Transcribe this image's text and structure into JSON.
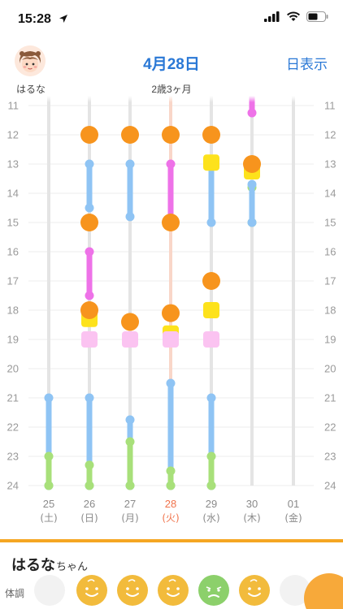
{
  "status_bar": {
    "time": "15:28"
  },
  "header": {
    "date": "4月28日",
    "view_button": "日表示"
  },
  "child": {
    "name": "はるな",
    "age": "2歳3ヶ月",
    "honorific": "ちゃん"
  },
  "panel": {
    "condition_label": "体調"
  },
  "colors": {
    "orange": "#f7941d",
    "blue": "#8fc4f4",
    "pink": "#ee72e8",
    "green": "#a8e07a",
    "yellow": "#fde21c",
    "lightpink": "#fbc3f1",
    "today": "#f0734b",
    "accent": "#2a78d6"
  },
  "chart_data": {
    "type": "timeline",
    "y_ticks": [
      "11",
      "12",
      "13",
      "14",
      "15",
      "16",
      "17",
      "18",
      "19",
      "20",
      "21",
      "22",
      "23",
      "24"
    ],
    "days": [
      {
        "date": "25",
        "weekday": "(土)",
        "today": false
      },
      {
        "date": "26",
        "weekday": "(日)",
        "today": false
      },
      {
        "date": "27",
        "weekday": "(月)",
        "today": false
      },
      {
        "date": "28",
        "weekday": "(火)",
        "today": true
      },
      {
        "date": "29",
        "weekday": "(水)",
        "today": false
      },
      {
        "date": "30",
        "weekday": "(木)",
        "today": false
      },
      {
        "date": "01",
        "weekday": "(金)",
        "today": false
      }
    ],
    "segments": [
      {
        "day": 0,
        "start": 21.0,
        "end": 24.0,
        "color": "blue"
      },
      {
        "day": 0,
        "start": 23.0,
        "end": 24.0,
        "color": "green"
      },
      {
        "day": 1,
        "start": 13.0,
        "end": 14.5,
        "color": "blue"
      },
      {
        "day": 1,
        "start": 16.0,
        "end": 17.5,
        "color": "pink"
      },
      {
        "day": 1,
        "start": 21.0,
        "end": 24.0,
        "color": "blue"
      },
      {
        "day": 1,
        "start": 23.3,
        "end": 24.0,
        "color": "green"
      },
      {
        "day": 2,
        "start": 13.0,
        "end": 14.8,
        "color": "blue"
      },
      {
        "day": 2,
        "start": 21.75,
        "end": 24.0,
        "color": "blue"
      },
      {
        "day": 2,
        "start": 22.5,
        "end": 24.0,
        "color": "green"
      },
      {
        "day": 3,
        "start": 13.0,
        "end": 15.0,
        "color": "pink"
      },
      {
        "day": 3,
        "start": 20.5,
        "end": 24.0,
        "color": "blue"
      },
      {
        "day": 3,
        "start": 23.5,
        "end": 24.0,
        "color": "green"
      },
      {
        "day": 4,
        "start": 13.0,
        "end": 15.0,
        "color": "blue"
      },
      {
        "day": 4,
        "start": 21.0,
        "end": 24.0,
        "color": "blue"
      },
      {
        "day": 4,
        "start": 23.0,
        "end": 24.0,
        "color": "green"
      },
      {
        "day": 5,
        "start": 10.5,
        "end": 11.25,
        "color": "pink"
      },
      {
        "day": 5,
        "start": 13.8,
        "end": 15.0,
        "color": "green"
      },
      {
        "day": 5,
        "start": 13.7,
        "end": 15.0,
        "color": "blue"
      }
    ],
    "meals": [
      {
        "day": 1,
        "time": 12.0
      },
      {
        "day": 1,
        "time": 15.0
      },
      {
        "day": 1,
        "time": 18.0
      },
      {
        "day": 2,
        "time": 12.0
      },
      {
        "day": 2,
        "time": 18.4
      },
      {
        "day": 3,
        "time": 12.0
      },
      {
        "day": 3,
        "time": 15.0
      },
      {
        "day": 3,
        "time": 18.1
      },
      {
        "day": 4,
        "time": 12.0
      },
      {
        "day": 4,
        "time": 17.0
      },
      {
        "day": 5,
        "time": 13.0
      }
    ],
    "markers": [
      {
        "day": 1,
        "time": 18.3,
        "color": "yellow"
      },
      {
        "day": 1,
        "time": 19.0,
        "color": "lightpink"
      },
      {
        "day": 2,
        "time": 19.0,
        "color": "lightpink"
      },
      {
        "day": 3,
        "time": 18.8,
        "color": "yellow"
      },
      {
        "day": 3,
        "time": 19.0,
        "color": "lightpink"
      },
      {
        "day": 4,
        "time": 12.95,
        "color": "yellow"
      },
      {
        "day": 4,
        "time": 18.0,
        "color": "yellow"
      },
      {
        "day": 4,
        "time": 19.0,
        "color": "lightpink"
      },
      {
        "day": 5,
        "time": 13.25,
        "color": "yellow"
      }
    ]
  },
  "conditions": [
    {
      "state": "none"
    },
    {
      "state": "good"
    },
    {
      "state": "good"
    },
    {
      "state": "good"
    },
    {
      "state": "sick"
    },
    {
      "state": "good"
    },
    {
      "state": "none"
    }
  ]
}
